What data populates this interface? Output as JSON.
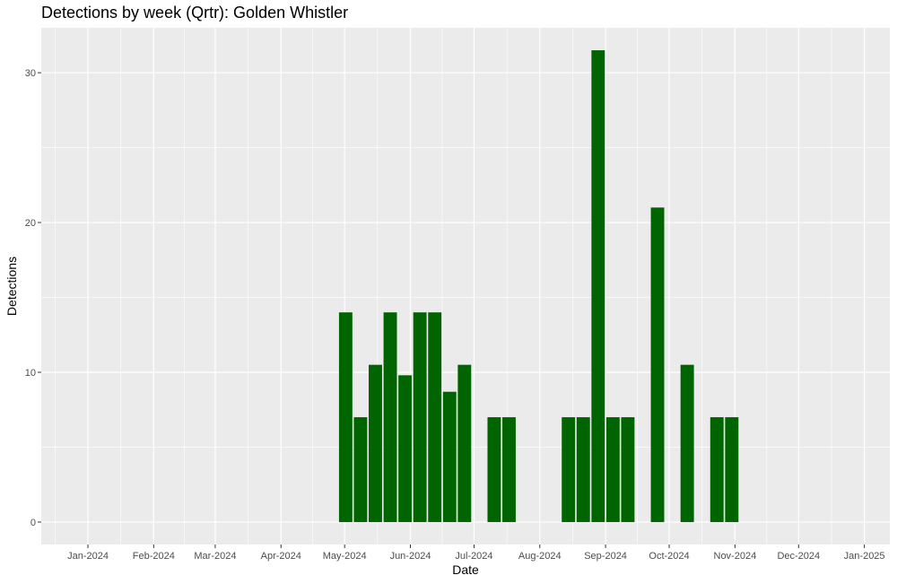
{
  "chart_data": {
    "type": "bar",
    "title": "Detections by week (Qrtr): Golden Whistler",
    "xlabel": "Date",
    "ylabel": "Detections",
    "bar_color": "#006400",
    "panel_background": "#ebebeb",
    "grid": true,
    "legend": "none",
    "xlim": [
      "2023-12-10",
      "2025-01-13"
    ],
    "ylim": [
      -1.5,
      33
    ],
    "y_ticks": [
      0,
      10,
      20,
      30
    ],
    "x_ticks": [
      {
        "date": "2024-01-01",
        "label": "Jan-2024"
      },
      {
        "date": "2024-02-01",
        "label": "Feb-2024"
      },
      {
        "date": "2024-03-01",
        "label": "Mar-2024"
      },
      {
        "date": "2024-04-01",
        "label": "Apr-2024"
      },
      {
        "date": "2024-05-01",
        "label": "May-2024"
      },
      {
        "date": "2024-06-01",
        "label": "Jun-2024"
      },
      {
        "date": "2024-07-01",
        "label": "Jul-2024"
      },
      {
        "date": "2024-08-01",
        "label": "Aug-2024"
      },
      {
        "date": "2024-09-01",
        "label": "Sep-2024"
      },
      {
        "date": "2024-10-01",
        "label": "Oct-2024"
      },
      {
        "date": "2024-11-01",
        "label": "Nov-2024"
      },
      {
        "date": "2024-12-01",
        "label": "Dec-2024"
      },
      {
        "date": "2025-01-01",
        "label": "Jan-2025"
      }
    ],
    "x": [
      "2024-04-28",
      "2024-05-05",
      "2024-05-12",
      "2024-05-19",
      "2024-05-26",
      "2024-06-02",
      "2024-06-09",
      "2024-06-16",
      "2024-06-23",
      "2024-07-07",
      "2024-07-14",
      "2024-08-11",
      "2024-08-18",
      "2024-08-25",
      "2024-09-01",
      "2024-09-08",
      "2024-09-22",
      "2024-10-06",
      "2024-10-20",
      "2024-10-27"
    ],
    "values": [
      14,
      7,
      10.5,
      14,
      9.8,
      14,
      14,
      8.7,
      10.5,
      7,
      7,
      7,
      7,
      31.5,
      7,
      7,
      21,
      10.5,
      7,
      7
    ]
  }
}
